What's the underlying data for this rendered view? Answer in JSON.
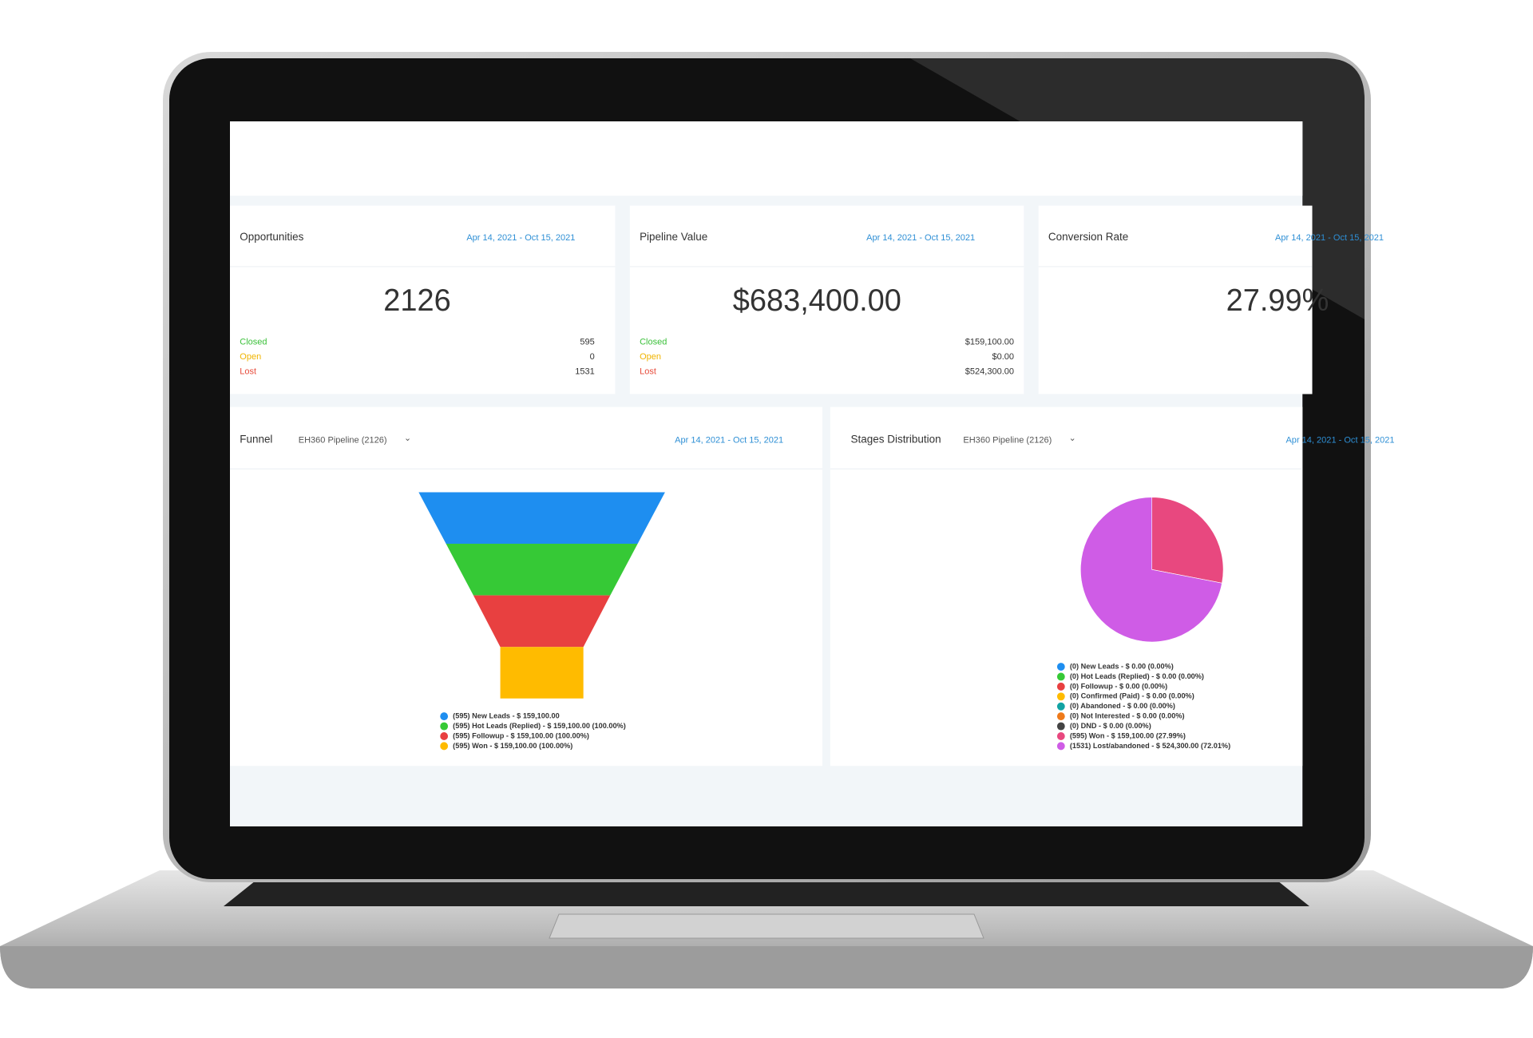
{
  "cards": [
    {
      "title": "Opportunities",
      "date": "Apr 14, 2021 - Oct 15, 2021",
      "value": "2126",
      "rows": [
        {
          "label": "Closed",
          "value": "595"
        },
        {
          "label": "Open",
          "value": "0"
        },
        {
          "label": "Lost",
          "value": "1531"
        }
      ]
    },
    {
      "title": "Pipeline Value",
      "date": "Apr 14, 2021 - Oct 15, 2021",
      "value": "$683,400.00",
      "rows": [
        {
          "label": "Closed",
          "value": "$159,100.00"
        },
        {
          "label": "Open",
          "value": "$0.00"
        },
        {
          "label": "Lost",
          "value": "$524,300.00"
        }
      ]
    },
    {
      "title": "Conversion Rate",
      "date": "Apr 14, 2021 - Oct 15, 2021",
      "value": "27.99%"
    }
  ],
  "funnel": {
    "title": "Funnel",
    "pipeline": "EH360 Pipeline (2126)",
    "date": "Apr 14, 2021 - Oct 15, 2021",
    "stages": [
      {
        "label": "(595) New Leads - $ 159,100.00",
        "color": "#1e8ef0",
        "count": 595
      },
      {
        "label": "(595) Hot Leads (Replied) - $ 159,100.00 (100.00%)",
        "color": "#36c936",
        "count": 595
      },
      {
        "label": "(595) Followup - $ 159,100.00 (100.00%)",
        "color": "#e84040",
        "count": 595
      },
      {
        "label": "(595) Won - $ 159,100.00 (100.00%)",
        "color": "#ffbb00",
        "count": 595
      }
    ]
  },
  "distribution": {
    "title": "Stages Distribution",
    "pipeline": "EH360 Pipeline (2126)",
    "date": "Apr 14, 2021 - Oct 15, 2021",
    "slices": [
      {
        "label": "(0) New Leads - $ 0.00 (0.00%)",
        "color": "#1e8ef0",
        "percent": 0
      },
      {
        "label": "(0) Hot Leads (Replied) - $ 0.00 (0.00%)",
        "color": "#36c936",
        "percent": 0
      },
      {
        "label": "(0) Followup - $ 0.00 (0.00%)",
        "color": "#e84040",
        "percent": 0
      },
      {
        "label": "(0) Confirmed (Paid) - $ 0.00 (0.00%)",
        "color": "#ffbb00",
        "percent": 0
      },
      {
        "label": "(0) Abandoned - $ 0.00 (0.00%)",
        "color": "#12a3a3",
        "percent": 0
      },
      {
        "label": "(0) Not Interested - $ 0.00 (0.00%)",
        "color": "#ee7a1a",
        "percent": 0
      },
      {
        "label": "(0) DND - $ 0.00 (0.00%)",
        "color": "#444444",
        "percent": 0
      },
      {
        "label": "(595) Won - $ 159,100.00 (27.99%)",
        "color": "#e8487f",
        "percent": 27.99
      },
      {
        "label": "(1531) Lost/abandoned - $ 524,300.00 (72.01%)",
        "color": "#cf5ce6",
        "percent": 72.01
      }
    ]
  }
}
